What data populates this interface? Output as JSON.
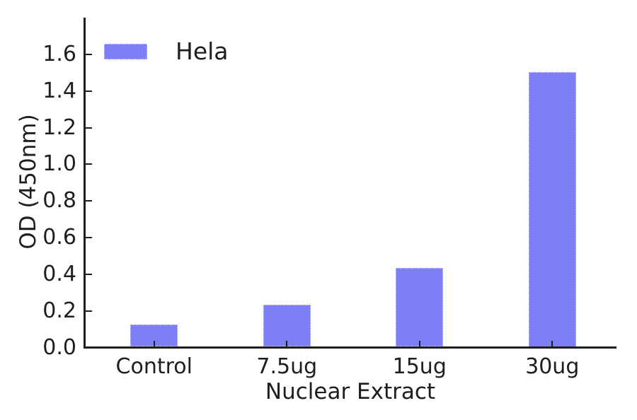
{
  "figure": {
    "background": "#ffffff",
    "text_color": "#1e1e1e",
    "axis_color": "#1e1e1e"
  },
  "chart_data": {
    "type": "bar",
    "title": "",
    "categories": [
      "Control",
      "7.5ug",
      "15ug",
      "30ug"
    ],
    "series": [
      {
        "name": "Hela",
        "values": [
          0.12,
          0.23,
          0.43,
          1.5
        ]
      }
    ],
    "xlabel": "Nuclear Extract",
    "ylabel": "OD (450nm)",
    "ylim": [
      0,
      1.8
    ],
    "yticks": [
      0.0,
      0.2,
      0.4,
      0.6,
      0.8,
      1.0,
      1.2,
      1.4,
      1.6
    ],
    "ytick_labels": [
      "0.0",
      "0.2",
      "0.4",
      "0.6",
      "0.8",
      "1.0",
      "1.2",
      "1.4",
      "1.6"
    ],
    "grid": false,
    "legend": {
      "position": "upper-left",
      "entries": [
        "Hela"
      ]
    },
    "bar_color": "#7e7ef6",
    "bar_edge_color": "#d8d8fa"
  }
}
